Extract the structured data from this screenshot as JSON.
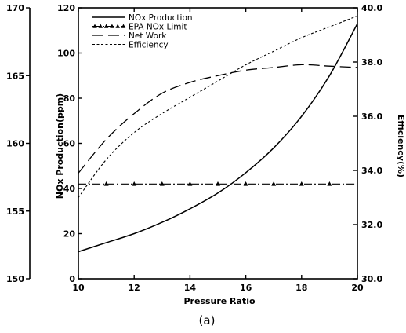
{
  "chart_data": {
    "type": "line",
    "xlabel": "Pressure Ratio",
    "ylabel_left": "NOx Production(ppm)",
    "ylabel_right": "Efficiency(%)",
    "caption": "(a)",
    "x_range": [
      10,
      20
    ],
    "x_ticks": [
      10,
      12,
      14,
      16,
      18,
      20
    ],
    "left_axis": {
      "range": [
        0,
        120
      ],
      "ticks": [
        0,
        20,
        40,
        60,
        80,
        100,
        120
      ]
    },
    "outer_left_axis": {
      "range": [
        150,
        170
      ],
      "ticks": [
        150,
        155,
        160,
        165,
        170
      ]
    },
    "right_axis": {
      "range": [
        30.0,
        40.0
      ],
      "ticks": [
        30.0,
        32.0,
        34.0,
        36.0,
        38.0,
        40.0
      ],
      "tick_labels": [
        "30.0",
        "32.0",
        "34.0",
        "36.0",
        "38.0",
        "40.0"
      ]
    },
    "grid": false,
    "legend_position": "top-left",
    "series": [
      {
        "name": "NOx Production",
        "axis": "left",
        "style": "solid",
        "x": [
          10,
          11,
          12,
          13,
          14,
          15,
          16,
          17,
          18,
          19,
          20
        ],
        "y": [
          12,
          16,
          20,
          25,
          31,
          38,
          47,
          58,
          72,
          90,
          113
        ]
      },
      {
        "name": "EPA NOx Limit",
        "axis": "left",
        "style": "dash-dot-triangles",
        "marker": "triangle",
        "x": [
          10,
          11,
          12,
          13,
          14,
          15,
          16,
          17,
          18,
          19,
          20
        ],
        "y": [
          42,
          42,
          42,
          42,
          42,
          42,
          42,
          42,
          42,
          42,
          42
        ]
      },
      {
        "name": "Net Work",
        "axis": "outer_left",
        "style": "long-dash",
        "x": [
          10,
          11,
          12,
          13,
          14,
          15,
          16,
          17,
          18,
          19,
          20
        ],
        "y": [
          157.8,
          160.3,
          162.2,
          163.7,
          164.5,
          165.0,
          165.4,
          165.6,
          165.8,
          165.7,
          165.6
        ]
      },
      {
        "name": "Efficiency",
        "axis": "right",
        "style": "dotted",
        "x": [
          10,
          11,
          12,
          13,
          14,
          15,
          16,
          17,
          18,
          19,
          20
        ],
        "y": [
          33.0,
          34.4,
          35.4,
          36.1,
          36.7,
          37.3,
          37.9,
          38.4,
          38.9,
          39.3,
          39.7
        ]
      }
    ]
  }
}
